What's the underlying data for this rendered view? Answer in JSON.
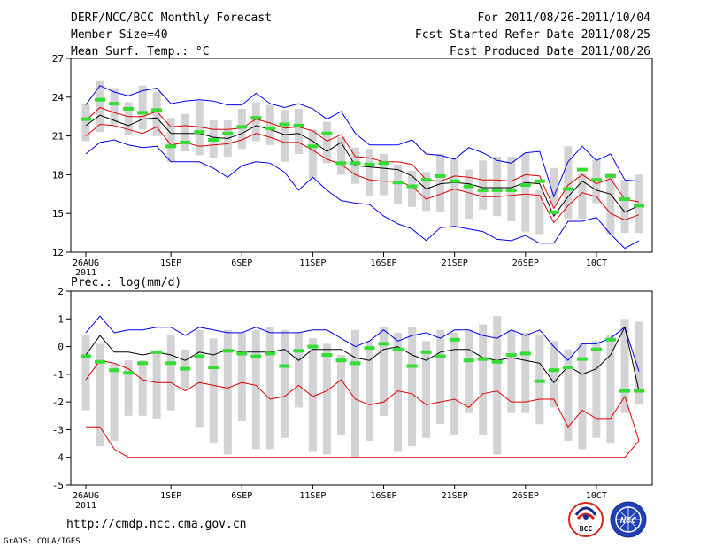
{
  "header": {
    "title": "DERF/NCC/BCC Monthly Forecast",
    "member_size": "Member Size=40",
    "variable": "Mean Surf. Temp.: °C",
    "period": "For 2011/08/26-2011/10/04",
    "fcst_started": "Fcst Started Refer Date 2011/08/25",
    "fcst_produced": "Fcst Produced Date 2011/08/26"
  },
  "footer": {
    "url": "http://cmdp.ncc.cma.gov.cn",
    "grads": "GrADS: COLA/IGES"
  },
  "logos": [
    {
      "name": "bcc-logo",
      "text": "BCC"
    },
    {
      "name": "ncc-logo",
      "text": "NCC"
    }
  ],
  "colors": {
    "box": "#d3d3d5",
    "envelope": "#0000ee",
    "spread": "#dd0000",
    "mean": "#000000",
    "median": "#33dd33"
  },
  "chart_data": [
    {
      "type": "box",
      "name": "temperature",
      "title": "Mean Surf. Temp.: °C",
      "ylabel": "°C",
      "ylim": [
        12,
        27
      ],
      "yticks": [
        12,
        15,
        18,
        21,
        24,
        27
      ],
      "xlim": [
        0,
        39
      ],
      "xticks": [
        {
          "day": 0,
          "label": "26AUG",
          "sub": "2011"
        },
        {
          "day": 6,
          "label": "1SEP"
        },
        {
          "day": 11,
          "label": "6SEP"
        },
        {
          "day": 16,
          "label": "11SEP"
        },
        {
          "day": 21,
          "label": "16SEP"
        },
        {
          "day": 26,
          "label": "21SEP"
        },
        {
          "day": 31,
          "label": "26SEP"
        },
        {
          "day": 36,
          "label": "10CT"
        }
      ],
      "box_low": [
        20.6,
        21.3,
        21.9,
        21.1,
        21.5,
        21.0,
        19.0,
        19.8,
        19.5,
        19.3,
        19.4,
        20.0,
        20.6,
        20.3,
        19.0,
        19.6,
        17.7,
        18.9,
        18.0,
        17.3,
        16.4,
        16.4,
        15.7,
        15.5,
        15.2,
        15.1,
        13.9,
        14.6,
        15.3,
        14.8,
        14.4,
        13.6,
        13.4,
        15.7,
        14.6,
        14.6,
        15.8,
        13.4,
        13.5,
        13.5
      ],
      "box_high": [
        23.5,
        25.3,
        24.7,
        23.6,
        24.9,
        24.4,
        22.4,
        22.7,
        23.7,
        22.2,
        22.2,
        23.1,
        23.6,
        23.4,
        23.0,
        23.1,
        21.5,
        22.1,
        20.9,
        20.1,
        20.0,
        19.6,
        18.8,
        18.3,
        18.2,
        19.6,
        19.2,
        18.4,
        19.1,
        19.4,
        19.4,
        19.7,
        16.8,
        18.5,
        20.2,
        18.1,
        19.2,
        18.1,
        17.6,
        18.0
      ],
      "series": [
        {
          "name": "max",
          "color": "#0000ee",
          "values": [
            19.6,
            20.5,
            20.7,
            20.3,
            20.1,
            20.2,
            19.0,
            19.0,
            19.0,
            18.5,
            17.8,
            18.7,
            19.0,
            18.9,
            18.2,
            16.8,
            17.8,
            16.8,
            16.0,
            15.8,
            15.7,
            14.8,
            14.2,
            13.8,
            12.9,
            13.9,
            14.0,
            13.8,
            13.6,
            13.0,
            12.9,
            13.3,
            12.7,
            12.7,
            14.4,
            14.4,
            14.7,
            13.4,
            12.3,
            12.9
          ]
        },
        {
          "name": "max",
          "color": "#0000ee",
          "values": [
            23.4,
            24.9,
            24.4,
            24.1,
            24.5,
            24.7,
            23.5,
            23.7,
            23.8,
            23.7,
            23.4,
            23.4,
            24.3,
            23.5,
            23.2,
            23.5,
            23.1,
            22.3,
            22.9,
            21.2,
            20.3,
            20.3,
            20.3,
            20.7,
            19.6,
            19.5,
            19.2,
            20.1,
            19.7,
            19.1,
            18.9,
            19.7,
            19.8,
            16.3,
            19.0,
            20.2,
            19.1,
            19.6,
            17.6,
            17.5
          ]
        },
        {
          "name": "spread",
          "color": "#dd0000",
          "values": [
            21.0,
            21.9,
            21.8,
            21.5,
            21.2,
            21.7,
            20.3,
            20.5,
            20.2,
            20.3,
            20.4,
            20.7,
            21.2,
            20.9,
            20.5,
            20.5,
            19.9,
            19.2,
            18.8,
            18.0,
            17.6,
            17.5,
            17.5,
            17.1,
            16.1,
            16.5,
            16.9,
            16.6,
            16.3,
            16.3,
            16.4,
            16.5,
            16.4,
            14.3,
            15.6,
            16.6,
            16.3,
            15.0,
            14.5,
            14.9
          ]
        },
        {
          "name": "spread",
          "color": "#dd0000",
          "values": [
            22.2,
            23.2,
            22.8,
            22.5,
            22.5,
            22.9,
            21.7,
            21.8,
            21.7,
            21.5,
            21.5,
            21.6,
            22.3,
            22.0,
            21.6,
            21.7,
            21.4,
            20.6,
            21.1,
            19.4,
            19.3,
            19.0,
            19.0,
            18.8,
            17.6,
            17.5,
            17.9,
            17.8,
            17.6,
            17.6,
            17.5,
            18.0,
            17.9,
            15.4,
            17.2,
            18.0,
            17.3,
            17.7,
            16.1,
            15.9
          ]
        },
        {
          "name": "mean",
          "color": "#000000",
          "values": [
            21.8,
            22.6,
            22.2,
            21.8,
            22.3,
            22.4,
            21.2,
            21.2,
            21.2,
            20.9,
            20.8,
            21.2,
            21.8,
            21.5,
            21.1,
            21.2,
            20.6,
            19.8,
            20.5,
            18.7,
            18.6,
            18.5,
            18.4,
            17.9,
            16.9,
            17.3,
            17.4,
            17.3,
            17.0,
            17.0,
            17.0,
            17.4,
            17.3,
            14.8,
            16.3,
            17.5,
            16.8,
            16.5,
            15.1,
            15.6
          ]
        },
        {
          "name": "median",
          "color": "#33dd33",
          "marker": "dash",
          "values": [
            22.3,
            23.8,
            23.5,
            23.1,
            22.8,
            23.0,
            20.2,
            20.5,
            21.3,
            20.7,
            21.2,
            21.7,
            22.4,
            21.6,
            21.9,
            21.8,
            20.2,
            21.2,
            18.9,
            18.9,
            18.8,
            18.9,
            17.4,
            17.1,
            17.6,
            17.9,
            17.5,
            17.1,
            16.8,
            16.8,
            16.8,
            17.2,
            17.5,
            15.1,
            16.9,
            18.4,
            17.6,
            17.9,
            16.1,
            15.6
          ]
        }
      ]
    },
    {
      "type": "box",
      "name": "precipitation",
      "title": "Prec.: log(mm/d)",
      "ylabel": "log(mm/d)",
      "ylim": [
        -5,
        2
      ],
      "yticks": [
        -5,
        -4,
        -3,
        -2,
        -1,
        0,
        1,
        2
      ],
      "xlim": [
        0,
        39
      ],
      "xticks": [
        {
          "day": 0,
          "label": "26AUG",
          "sub": "2011"
        },
        {
          "day": 6,
          "label": "1SEP"
        },
        {
          "day": 11,
          "label": "6SEP"
        },
        {
          "day": 16,
          "label": "11SEP"
        },
        {
          "day": 21,
          "label": "16SEP"
        },
        {
          "day": 26,
          "label": "21SEP"
        },
        {
          "day": 31,
          "label": "26SEP"
        },
        {
          "day": 36,
          "label": "10CT"
        }
      ],
      "box_low": [
        -2.3,
        -3.6,
        -3.4,
        -2.5,
        -2.5,
        -2.6,
        -2.3,
        -1.5,
        -2.9,
        -3.5,
        -3.9,
        -2.7,
        -3.7,
        -3.7,
        -3.3,
        -2.2,
        -3.8,
        -3.9,
        -3.2,
        -4.0,
        -3.4,
        -2.5,
        -3.8,
        -3.6,
        -3.3,
        -2.8,
        -3.2,
        -2.4,
        -3.2,
        -3.9,
        -2.4,
        -2.4,
        -2.8,
        -2.2,
        -3.4,
        -3.7,
        -3.3,
        -3.5,
        -2.4,
        -2.1
      ],
      "box_high": [
        0.4,
        0.1,
        -0.6,
        -0.5,
        -0.5,
        -0.2,
        0.4,
        -0.1,
        0.6,
        0.3,
        0.6,
        0.5,
        0.6,
        0.7,
        0.6,
        0.5,
        0.3,
        0.1,
        -0.3,
        0.6,
        0.2,
        0.7,
        0.5,
        0.7,
        0.2,
        0.6,
        0.5,
        0.6,
        0.8,
        1.1,
        0.6,
        0.5,
        0.4,
        0.2,
        -0.1,
        0.1,
        0.2,
        0.4,
        1.0,
        0.9
      ],
      "series": [
        {
          "name": "lower",
          "color": "#dd0000",
          "values": [
            -2.9,
            -2.9,
            -3.7,
            -4.0,
            -4.0,
            -4.0,
            -4.0,
            -4.0,
            -4.0,
            -4.0,
            -4.0,
            -4.0,
            -4.0,
            -4.0,
            -4.0,
            -4.0,
            -4.0,
            -4.0,
            -4.0,
            -4.0,
            -4.0,
            -4.0,
            -4.0,
            -4.0,
            -4.0,
            -4.0,
            -4.0,
            -4.0,
            -4.0,
            -4.0,
            -4.0,
            -4.0,
            -4.0,
            -4.0,
            -4.0,
            -4.0,
            -4.0,
            -4.0,
            -4.0,
            -3.4
          ]
        },
        {
          "name": "max",
          "color": "#0000ee",
          "values": [
            0.5,
            1.1,
            0.5,
            0.6,
            0.6,
            0.7,
            0.7,
            0.4,
            0.7,
            0.6,
            0.5,
            0.5,
            0.7,
            0.5,
            0.5,
            0.5,
            0.6,
            0.6,
            0.3,
            0.0,
            0.2,
            0.6,
            0.2,
            0.4,
            0.5,
            0.3,
            0.6,
            0.6,
            0.4,
            0.3,
            0.6,
            0.4,
            0.6,
            0.0,
            -0.5,
            0.1,
            0.1,
            0.3,
            0.7,
            -0.9
          ]
        },
        {
          "name": "spread",
          "color": "#dd0000",
          "values": [
            -1.2,
            -0.5,
            -0.6,
            -0.8,
            -1.2,
            -1.3,
            -1.3,
            -1.6,
            -1.3,
            -1.4,
            -1.5,
            -1.3,
            -1.4,
            -1.9,
            -1.8,
            -1.4,
            -1.8,
            -1.6,
            -1.2,
            -1.9,
            -2.1,
            -2.0,
            -1.6,
            -1.7,
            -2.1,
            -2.0,
            -1.9,
            -2.2,
            -1.7,
            -1.6,
            -2.0,
            -2.0,
            -1.9,
            -1.9,
            -2.9,
            -2.3,
            -2.6,
            -2.6,
            -1.8,
            -3.4
          ]
        },
        {
          "name": "mean",
          "color": "#000000",
          "values": [
            -0.3,
            0.4,
            -0.2,
            -0.2,
            -0.3,
            -0.2,
            -0.3,
            -0.5,
            -0.2,
            -0.3,
            -0.1,
            -0.2,
            -0.2,
            -0.2,
            -0.1,
            -0.5,
            -0.1,
            -0.1,
            -0.1,
            -0.4,
            -0.5,
            -0.1,
            0.0,
            -0.3,
            -0.5,
            -0.2,
            -0.1,
            -0.1,
            -0.4,
            -0.5,
            -0.4,
            -0.5,
            -0.6,
            -1.3,
            -0.7,
            -1.0,
            -0.8,
            -0.3,
            0.7,
            -1.6
          ]
        },
        {
          "name": "median",
          "color": "#33dd33",
          "marker": "dash",
          "values": [
            -0.35,
            -0.55,
            -0.85,
            -0.95,
            -0.6,
            -0.2,
            -0.6,
            -0.8,
            -0.35,
            -0.75,
            -0.15,
            -0.25,
            -0.35,
            -0.25,
            -0.7,
            -0.15,
            0.0,
            -0.3,
            -0.5,
            -0.6,
            -0.05,
            0.1,
            -0.1,
            -0.7,
            -0.2,
            -0.35,
            0.25,
            -0.5,
            -0.45,
            -0.55,
            -0.3,
            -0.25,
            -1.25,
            -0.85,
            -0.75,
            -0.45,
            -0.1,
            0.25,
            -1.6,
            -1.6
          ]
        }
      ]
    }
  ]
}
